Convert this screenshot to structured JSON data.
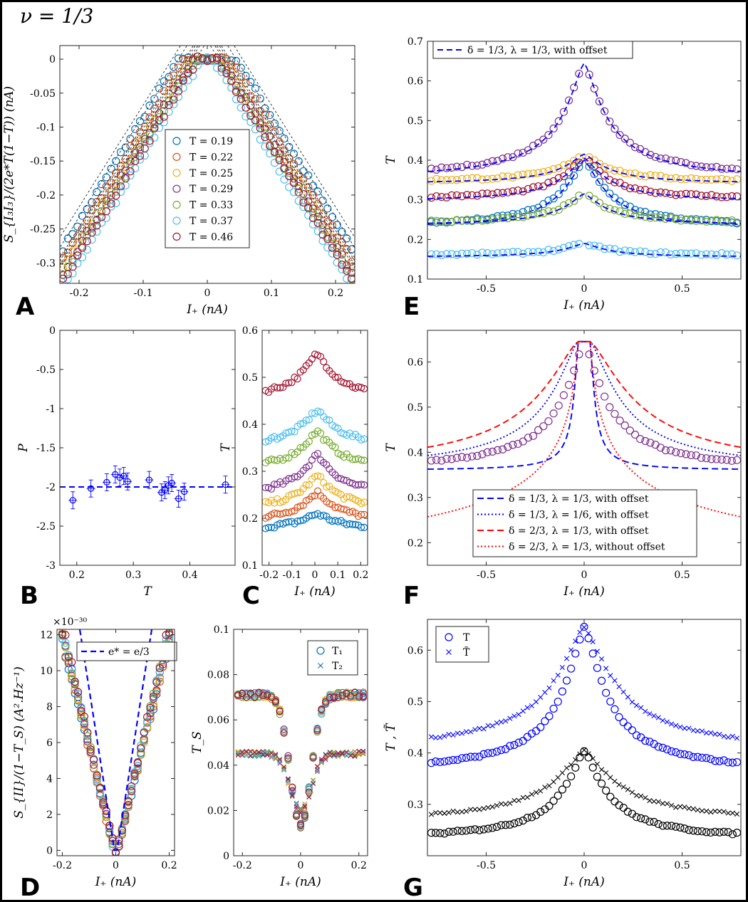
{
  "figure_title": "ν = 1/3",
  "colors": {
    "c1": "#0072BD",
    "c2": "#D95319",
    "c3": "#EDB120",
    "c4": "#7E2F8E",
    "c5": "#77AC30",
    "c6": "#4DBEEE",
    "c7": "#A2142F",
    "blue": "#0000FF",
    "red": "#FF0000",
    "black": "#000000"
  },
  "chart_data": [
    {
      "id": "A",
      "letter": "A",
      "type": "scatter",
      "xlabel": "I₊ (nA)",
      "ylabel": "S_{I₃I₃}/(2e*T(1−T)) (nA)",
      "xlim": [
        -0.23,
        0.23
      ],
      "ylim": [
        -0.33,
        0.02
      ],
      "xticks": [
        -0.2,
        -0.1,
        0,
        0.1,
        0.2
      ],
      "xticklabels": [
        "-0.2",
        "-0.1",
        "0",
        "0.1",
        "0.2"
      ],
      "yticks": [
        0,
        -0.05,
        -0.1,
        -0.15,
        -0.2,
        -0.25,
        -0.3
      ],
      "yticklabels": [
        "0",
        "-0.05",
        "-0.1",
        "-0.15",
        "-0.2",
        "-0.25",
        "-0.3"
      ],
      "legend": [
        "T = 0.19",
        "T = 0.22",
        "T = 0.25",
        "T = 0.29",
        "T = 0.33",
        "T = 0.37",
        "T = 0.46"
      ],
      "series": [
        {
          "name": "T = 0.19",
          "color": "c1",
          "offset": 0.045,
          "slope": 1.55
        },
        {
          "name": "T = 0.22",
          "color": "c2",
          "offset": 0.035,
          "slope": 1.55
        },
        {
          "name": "T = 0.25",
          "color": "c3",
          "offset": 0.025,
          "slope": 1.55
        },
        {
          "name": "T = 0.29",
          "color": "c4",
          "offset": 0.022,
          "slope": 1.55
        },
        {
          "name": "T = 0.33",
          "color": "c5",
          "offset": 0.018,
          "slope": 1.55
        },
        {
          "name": "T = 0.37",
          "color": "c6",
          "offset": 0.008,
          "slope": 1.55
        },
        {
          "name": "T = 0.46",
          "color": "c7",
          "offset": 0.015,
          "slope": 1.55
        }
      ]
    },
    {
      "id": "B",
      "letter": "B",
      "type": "scatter",
      "xlabel": "T",
      "ylabel": "P",
      "xlim": [
        0.17,
        0.48
      ],
      "ylim": [
        -3,
        0
      ],
      "xticks": [
        0.2,
        0.3,
        0.4
      ],
      "xticklabels": [
        "0.2",
        "0.3",
        "0.4"
      ],
      "yticks": [
        0,
        -0.5,
        -1,
        -1.5,
        -2,
        -2.5,
        -3
      ],
      "yticklabels": [
        "0",
        "-0.5",
        "-1",
        "-1.5",
        "-2",
        "-2.5",
        "-3"
      ],
      "reference_line": -2,
      "points": [
        {
          "x": 0.193,
          "y": -2.17
        },
        {
          "x": 0.225,
          "y": -2.02
        },
        {
          "x": 0.253,
          "y": -1.94
        },
        {
          "x": 0.268,
          "y": -1.84
        },
        {
          "x": 0.276,
          "y": -1.88
        },
        {
          "x": 0.283,
          "y": -1.86
        },
        {
          "x": 0.29,
          "y": -1.93
        },
        {
          "x": 0.328,
          "y": -1.91
        },
        {
          "x": 0.35,
          "y": -2.07
        },
        {
          "x": 0.356,
          "y": -2.04
        },
        {
          "x": 0.362,
          "y": -1.98
        },
        {
          "x": 0.368,
          "y": -1.95
        },
        {
          "x": 0.38,
          "y": -2.15
        },
        {
          "x": 0.39,
          "y": -2.06
        },
        {
          "x": 0.463,
          "y": -1.97
        }
      ]
    },
    {
      "id": "C",
      "letter": "C",
      "type": "scatter",
      "xlabel": "I₊ (nA)",
      "ylabel": "T",
      "xlim": [
        -0.23,
        0.23
      ],
      "ylim": [
        0.1,
        0.6
      ],
      "xticks": [
        -0.2,
        -0.1,
        0,
        0.1,
        0.2
      ],
      "xticklabels": [
        "-0.2",
        "-0.1",
        "0",
        "0.1",
        "0.2"
      ],
      "yticks": [
        0.1,
        0.2,
        0.3,
        0.4,
        0.5,
        0.6
      ],
      "yticklabels": [
        "0.1",
        "0.2",
        "0.3",
        "0.4",
        "0.5",
        "0.6"
      ],
      "series": [
        {
          "color": "c1",
          "base": 0.175,
          "peak": 0.21
        },
        {
          "color": "c2",
          "base": 0.19,
          "peak": 0.255
        },
        {
          "color": "c3",
          "base": 0.215,
          "peak": 0.29
        },
        {
          "color": "c4",
          "base": 0.245,
          "peak": 0.335
        },
        {
          "color": "c5",
          "base": 0.3,
          "peak": 0.385
        },
        {
          "color": "c6",
          "base": 0.35,
          "peak": 0.43
        },
        {
          "color": "c7",
          "base": 0.45,
          "peak": 0.55
        }
      ]
    },
    {
      "id": "D",
      "letter": "D",
      "type": "scatter",
      "xlabel": "I₊ (nA)",
      "ylabel": "S_{II}/(1−T_S) (A².Hz⁻¹)",
      "exponent_label": "×10⁻³⁰",
      "xlim": [
        -0.22,
        0.22
      ],
      "ylim": [
        -0.3,
        12.3
      ],
      "xticks": [
        -0.2,
        0,
        0.2
      ],
      "xticklabels": [
        "-0.2",
        "0",
        "0.2"
      ],
      "yticks": [
        0,
        2,
        4,
        6,
        8,
        10,
        12
      ],
      "yticklabels": [
        "0",
        "2",
        "4",
        "6",
        "8",
        "10",
        "12"
      ],
      "legend": [
        "e* = e/3"
      ],
      "series": [
        {
          "slope": 66
        }
      ]
    },
    {
      "id": "D2",
      "letter": "",
      "type": "scatter",
      "xlabel": "I₊ (nA)",
      "ylabel": "T_S",
      "xlim": [
        -0.23,
        0.23
      ],
      "ylim": [
        0,
        0.1
      ],
      "xticks": [
        -0.2,
        0,
        0.2
      ],
      "xticklabels": [
        "-0.2",
        "0",
        "0.2"
      ],
      "yticks": [
        0,
        0.02,
        0.04,
        0.06,
        0.08,
        0.1
      ],
      "yticklabels": [
        "0",
        "0.02",
        "0.04",
        "0.06",
        "0.08",
        "0.1"
      ],
      "legend": [
        "T₁",
        "T₂"
      ],
      "series": [
        {
          "name": "T₁",
          "marker": "circle",
          "plateau": 0.071,
          "min": 0.013
        },
        {
          "name": "T₂",
          "marker": "cross",
          "plateau": 0.045,
          "min": 0.02
        }
      ]
    },
    {
      "id": "E",
      "letter": "E",
      "type": "scatter",
      "xlabel": "I₊ (nA)",
      "ylabel": "T",
      "xlim": [
        -0.8,
        0.8
      ],
      "ylim": [
        0.1,
        0.7
      ],
      "xticks": [
        -0.5,
        0,
        0.5
      ],
      "xticklabels": [
        "-0.5",
        "0",
        "0.5"
      ],
      "yticks": [
        0.1,
        0.2,
        0.3,
        0.4,
        0.5,
        0.6,
        0.7
      ],
      "yticklabels": [
        "0.1",
        "0.2",
        "0.3",
        "0.4",
        "0.5",
        "0.6",
        "0.7"
      ],
      "legend": [
        "δ = 1/3, λ = 1/3, with offset"
      ],
      "series": [
        {
          "color": "c4",
          "base": 0.355,
          "peak": 0.645
        },
        {
          "color": "c3",
          "base": 0.345,
          "peak": 0.415
        },
        {
          "color": "c7",
          "base": 0.3,
          "peak": 0.405
        },
        {
          "color": "c1",
          "base": 0.23,
          "peak": 0.4
        },
        {
          "color": "c5",
          "base": 0.24,
          "peak": 0.315
        },
        {
          "color": "c6",
          "base": 0.16,
          "peak": 0.19
        }
      ]
    },
    {
      "id": "F",
      "letter": "F",
      "type": "line",
      "xlabel": "I₊ (nA)",
      "ylabel": "T",
      "xlim": [
        -0.8,
        0.8
      ],
      "ylim": [
        0.15,
        0.67
      ],
      "xticks": [
        -0.5,
        0,
        0.5
      ],
      "xticklabels": [
        "-0.5",
        "0",
        "0.5"
      ],
      "yticks": [
        0.2,
        0.3,
        0.4,
        0.5,
        0.6
      ],
      "yticklabels": [
        "0.2",
        "0.3",
        "0.4",
        "0.5",
        "0.6"
      ],
      "legend": [
        "δ = 1/3, λ = 1/3, with offset",
        "δ = 1/3, λ = 1/6, with offset",
        "δ = 2/3, λ = 1/3, with offset",
        "δ = 2/3, λ = 1/3, without offset"
      ],
      "data": {
        "base": 0.36,
        "peak": 0.645
      },
      "curves": [
        {
          "name": "δ = 1/3, λ = 1/3, with offset",
          "color": "blue",
          "dash": "9,5",
          "base": 0.36,
          "peak": 0.645,
          "w": 0.14
        },
        {
          "name": "δ = 1/3, λ = 1/6, with offset",
          "color": "blue",
          "dash": "2,3",
          "base": 0.36,
          "peak": 0.645,
          "w": 0.9
        },
        {
          "name": "δ = 2/3, λ = 1/3, with offset",
          "color": "red",
          "dash": "9,5",
          "base": 0.36,
          "peak": 0.645,
          "w": 1.3
        },
        {
          "name": "δ = 2/3, λ = 1/3, without offset",
          "color": "red",
          "dash": "2,3",
          "base": 0.0,
          "peak": 0.645,
          "w": 0.45
        }
      ]
    },
    {
      "id": "G",
      "letter": "G",
      "type": "scatter",
      "xlabel": "I₊ (nA)",
      "ylabel": "T , T̃",
      "xlim": [
        -0.8,
        0.8
      ],
      "ylim": [
        0.2,
        0.66
      ],
      "xticks": [
        -0.5,
        0,
        0.5
      ],
      "xticklabels": [
        "-0.5",
        "0",
        "0.5"
      ],
      "yticks": [
        0.3,
        0.4,
        0.5,
        0.6
      ],
      "yticklabels": [
        "0.3",
        "0.4",
        "0.5",
        "0.6"
      ],
      "legend": [
        "T",
        "T̃"
      ],
      "series": [
        {
          "name": "T",
          "color": "blue",
          "marker": "circle",
          "base": 0.36,
          "peak": 0.645
        },
        {
          "name": "T̃",
          "color": "blue",
          "marker": "cross",
          "base": 0.4,
          "peak": 0.645
        },
        {
          "color": "black",
          "marker": "circle",
          "base": 0.23,
          "peak": 0.405
        },
        {
          "color": "black",
          "marker": "cross",
          "base": 0.265,
          "peak": 0.405
        }
      ]
    }
  ]
}
